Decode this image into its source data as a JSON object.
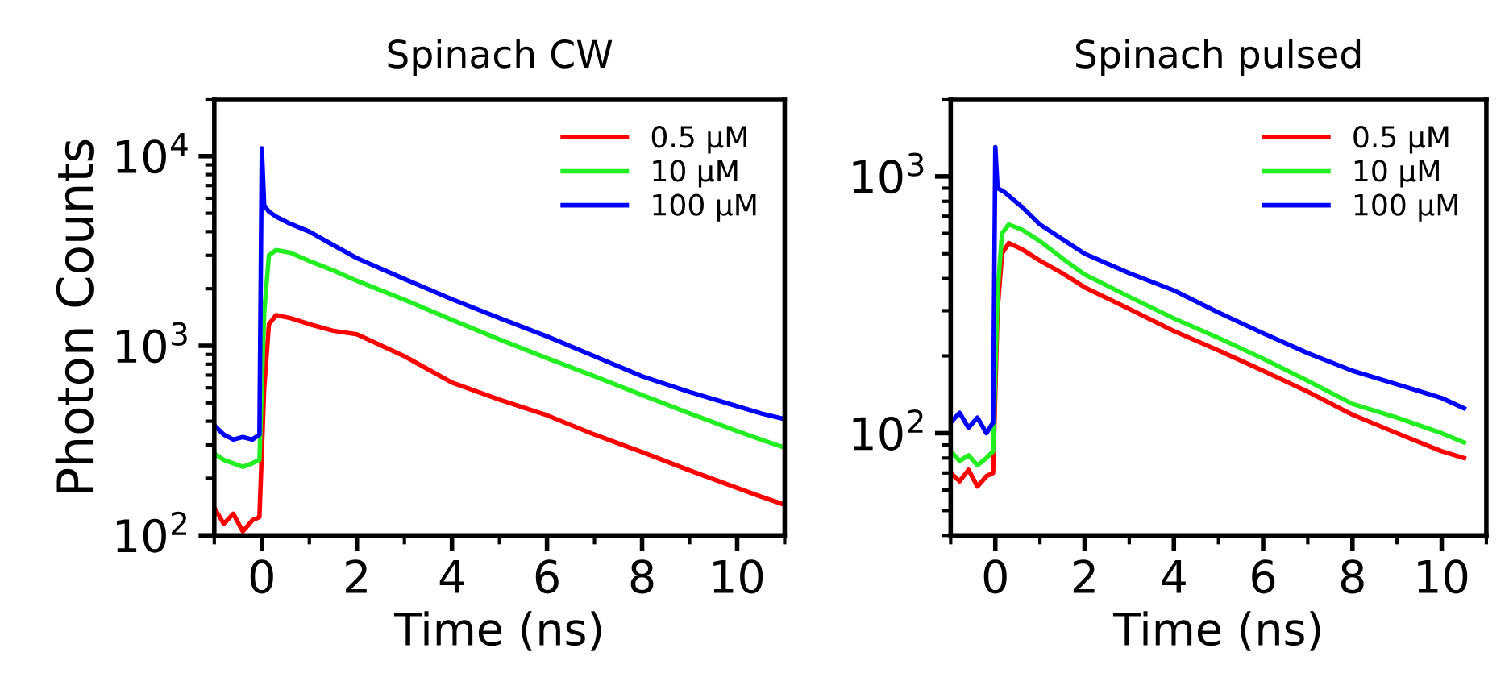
{
  "chart_data": [
    {
      "type": "line",
      "title": "Spinach CW",
      "xlabel": "Time (ns)",
      "ylabel": "Photon Counts",
      "log": "y",
      "xlim": [
        -1,
        11
      ],
      "ylim": [
        100,
        20000
      ],
      "xticks": [
        0,
        2,
        4,
        6,
        8,
        10
      ],
      "yticks": [
        {
          "value": 100,
          "label": "10$^{2}$"
        },
        {
          "value": 1000,
          "label": "10$^{3}$"
        },
        {
          "value": 10000,
          "label": "10$^{4}$"
        }
      ],
      "legend": "top right",
      "grid": false,
      "series": [
        {
          "name": "0.5 μM",
          "color": "#ff0000",
          "x": [
            -1,
            -0.8,
            -0.6,
            -0.4,
            -0.2,
            -0.05,
            0.05,
            0.15,
            0.3,
            0.6,
            1,
            1.5,
            2,
            3,
            4,
            5,
            6,
            7,
            8,
            9,
            10,
            10.5,
            11
          ],
          "values": [
            140,
            115,
            130,
            105,
            120,
            125,
            600,
            1300,
            1450,
            1400,
            1300,
            1200,
            1150,
            880,
            640,
            520,
            430,
            340,
            275,
            220,
            178,
            160,
            145
          ]
        },
        {
          "name": "10 μM",
          "color": "#22ee22",
          "x": [
            -1,
            -0.8,
            -0.6,
            -0.4,
            -0.2,
            -0.05,
            0.05,
            0.15,
            0.3,
            0.6,
            1,
            1.5,
            2,
            3,
            4,
            5,
            6,
            7,
            8,
            9,
            10,
            10.5,
            11
          ],
          "values": [
            270,
            250,
            240,
            230,
            240,
            250,
            1500,
            3000,
            3200,
            3100,
            2800,
            2500,
            2200,
            1750,
            1370,
            1080,
            860,
            690,
            550,
            440,
            355,
            320,
            290
          ]
        },
        {
          "name": "100 μM",
          "color": "#0000ff",
          "x": [
            -1,
            -0.8,
            -0.6,
            -0.4,
            -0.2,
            -0.05,
            0,
            0.05,
            0.15,
            0.3,
            0.6,
            1,
            1.5,
            2,
            3,
            4,
            5,
            6,
            7,
            8,
            9,
            10,
            10.5,
            11
          ],
          "values": [
            380,
            340,
            320,
            330,
            320,
            340,
            11000,
            5500,
            5100,
            4800,
            4400,
            4000,
            3400,
            2900,
            2250,
            1760,
            1400,
            1120,
            880,
            690,
            570,
            480,
            440,
            410
          ]
        }
      ]
    },
    {
      "type": "line",
      "title": "Spinach pulsed",
      "xlabel": "Time (ns)",
      "log": "y",
      "xlim": [
        -1,
        11
      ],
      "ylim": [
        40,
        2000
      ],
      "xticks": [
        0,
        2,
        4,
        6,
        8,
        10
      ],
      "yticks": [
        {
          "value": 100,
          "label": "10$^{2}$"
        },
        {
          "value": 1000,
          "label": "10$^{3}$"
        }
      ],
      "legend": "top right",
      "grid": false,
      "series": [
        {
          "name": "0.5 μM",
          "color": "#ff0000",
          "x": [
            -1,
            -0.8,
            -0.6,
            -0.4,
            -0.2,
            -0.05,
            0.05,
            0.15,
            0.3,
            0.6,
            1,
            1.5,
            2,
            3,
            4,
            5,
            6,
            7,
            8,
            9,
            10,
            10.5
          ],
          "values": [
            70,
            65,
            72,
            62,
            68,
            70,
            300,
            500,
            550,
            520,
            470,
            420,
            370,
            305,
            250,
            210,
            175,
            145,
            118,
            100,
            85,
            80
          ]
        },
        {
          "name": "10 μM",
          "color": "#22ee22",
          "x": [
            -1,
            -0.8,
            -0.6,
            -0.4,
            -0.2,
            -0.05,
            0.05,
            0.15,
            0.3,
            0.6,
            1,
            1.5,
            2,
            3,
            4,
            5,
            6,
            7,
            8,
            9,
            10,
            10.5
          ],
          "values": [
            85,
            78,
            82,
            75,
            80,
            85,
            350,
            600,
            650,
            620,
            560,
            480,
            415,
            340,
            280,
            235,
            195,
            160,
            130,
            115,
            100,
            92
          ]
        },
        {
          "name": "100 μM",
          "color": "#0000ff",
          "x": [
            -1,
            -0.8,
            -0.6,
            -0.4,
            -0.2,
            -0.05,
            0,
            0.05,
            0.2,
            0.6,
            1,
            1.5,
            2,
            3,
            4,
            5,
            6,
            7,
            8,
            9,
            10,
            10.5
          ],
          "values": [
            110,
            120,
            105,
            115,
            100,
            110,
            1300,
            900,
            870,
            760,
            650,
            570,
            500,
            420,
            360,
            295,
            245,
            205,
            175,
            155,
            137,
            125
          ]
        }
      ]
    }
  ]
}
